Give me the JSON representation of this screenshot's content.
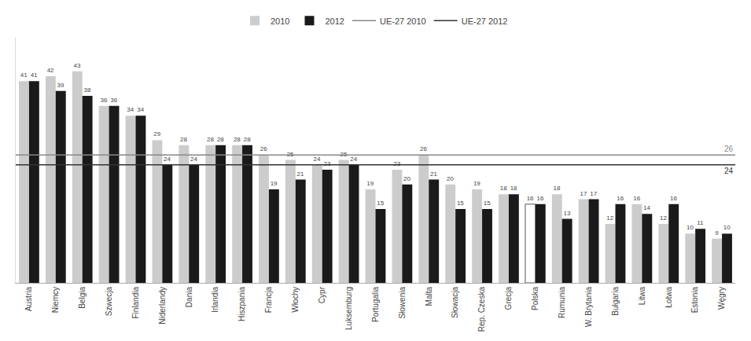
{
  "chart_data": {
    "type": "bar",
    "categories": [
      "Austria",
      "Niemcy",
      "Belgia",
      "Szwecja",
      "Finlandia",
      "Niderlandy",
      "Dania",
      "Irlandia",
      "Hiszpania",
      "Francja",
      "Włochy",
      "Cypr",
      "Luksemburg",
      "Portugalia",
      "Słowenia",
      "Malta",
      "Słowacja",
      "Rep. Czeska",
      "Grecja",
      "Polska",
      "Rumunia",
      "W. Brytania",
      "Bułgaria",
      "Litwa",
      "Łotwa",
      "Estonia",
      "Węgry"
    ],
    "series": [
      {
        "name": "2010",
        "color": "#cccccc",
        "colors": [
          "#cccccc",
          "#cccccc",
          "#cccccc",
          "#cccccc",
          "#cccccc",
          "#cccccc",
          "#cccccc",
          "#cccccc",
          "#cccccc",
          "#cccccc",
          "#cccccc",
          "#cccccc",
          "#cccccc",
          "#cccccc",
          "#cccccc",
          "#cccccc",
          "#cccccc",
          "#cccccc",
          "#cccccc",
          "#ffffff",
          "#cccccc",
          "#cccccc",
          "#cccccc",
          "#cccccc",
          "#cccccc",
          "#cccccc",
          "#cccccc"
        ],
        "values": [
          41,
          42,
          43,
          36,
          34,
          29,
          28,
          28,
          28,
          26,
          25,
          24,
          25,
          19,
          23,
          26,
          20,
          19,
          18,
          16,
          18,
          17,
          12,
          16,
          12,
          10,
          9
        ]
      },
      {
        "name": "2012",
        "color": "#1a1a1a",
        "values": [
          41,
          39,
          38,
          36,
          34,
          24,
          24,
          28,
          28,
          19,
          21,
          23,
          24,
          15,
          20,
          21,
          15,
          15,
          18,
          16,
          13,
          17,
          16,
          14,
          16,
          11,
          10
        ]
      }
    ],
    "lines": [
      {
        "name": "UE-27 2010",
        "color": "#888888",
        "value": 26
      },
      {
        "name": "UE-27 2012",
        "color": "#333333",
        "value": 24
      }
    ],
    "ylim": [
      0,
      50
    ],
    "data_labels": true,
    "legend": "top",
    "grid": false,
    "tick_labels": "x"
  }
}
